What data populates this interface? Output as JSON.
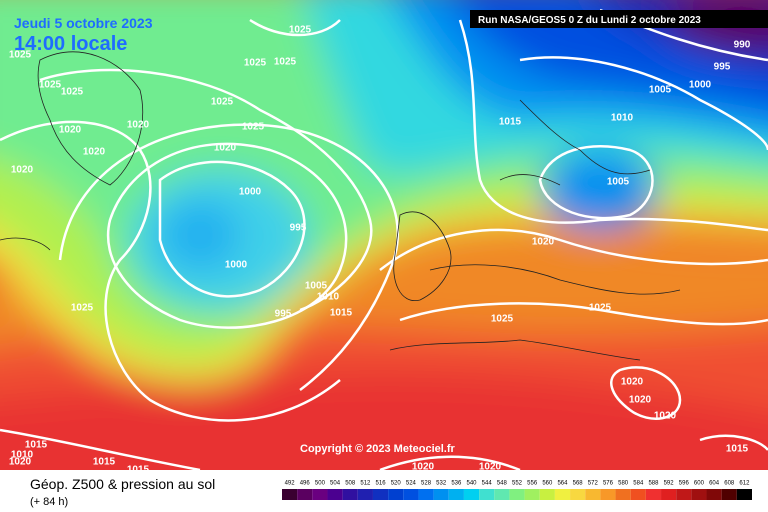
{
  "header": {
    "date": "Jeudi 5 octobre 2023",
    "time": "14:00 locale",
    "run": "Run NASA/GEOS5 0 Z du Lundi 2 octobre 2023"
  },
  "isobars": [
    1025,
    1025,
    1025,
    1025,
    1025,
    1025,
    1025,
    1020,
    1020,
    1020,
    1025,
    1020,
    1020,
    1015,
    1010,
    1005,
    1000,
    995,
    990,
    1005,
    1000,
    995,
    1000,
    1020,
    1005,
    1010,
    1015,
    995,
    1025,
    1025,
    1025,
    1020,
    1020,
    1020,
    1015,
    1010,
    1020,
    1015,
    1015,
    1020,
    1020,
    1015
  ],
  "copyright": "Copyright © 2023 Meteociel.fr",
  "legend": {
    "title": "Géop. Z500 & pression au sol",
    "subtitle": "(+ 84 h)",
    "scale": [
      {
        "value": 492,
        "color": "#3a0030"
      },
      {
        "value": 496,
        "color": "#5a0060"
      },
      {
        "value": 500,
        "color": "#6a0080"
      },
      {
        "value": 504,
        "color": "#4b0090"
      },
      {
        "value": 508,
        "color": "#3010a0"
      },
      {
        "value": 512,
        "color": "#2020b0"
      },
      {
        "value": 516,
        "color": "#1030c0"
      },
      {
        "value": 520,
        "color": "#0040d0"
      },
      {
        "value": 524,
        "color": "#0050e0"
      },
      {
        "value": 528,
        "color": "#0070f0"
      },
      {
        "value": 532,
        "color": "#0090f0"
      },
      {
        "value": 536,
        "color": "#00b0f0"
      },
      {
        "value": 540,
        "color": "#00d0f0"
      },
      {
        "value": 544,
        "color": "#40e0d0"
      },
      {
        "value": 548,
        "color": "#60e8b0"
      },
      {
        "value": 552,
        "color": "#80f080"
      },
      {
        "value": 556,
        "color": "#a0f060"
      },
      {
        "value": 560,
        "color": "#c8f040"
      },
      {
        "value": 564,
        "color": "#f0f040"
      },
      {
        "value": 568,
        "color": "#f8d840"
      },
      {
        "value": 572,
        "color": "#f8b830"
      },
      {
        "value": 576,
        "color": "#f89828"
      },
      {
        "value": 580,
        "color": "#f07020"
      },
      {
        "value": 584,
        "color": "#f05020"
      },
      {
        "value": 588,
        "color": "#f03030"
      },
      {
        "value": 592,
        "color": "#e02020"
      },
      {
        "value": 596,
        "color": "#c01818"
      },
      {
        "value": 600,
        "color": "#a01010"
      },
      {
        "value": 604,
        "color": "#800808"
      },
      {
        "value": 608,
        "color": "#500000"
      },
      {
        "value": 612,
        "color": "#000000"
      }
    ]
  }
}
